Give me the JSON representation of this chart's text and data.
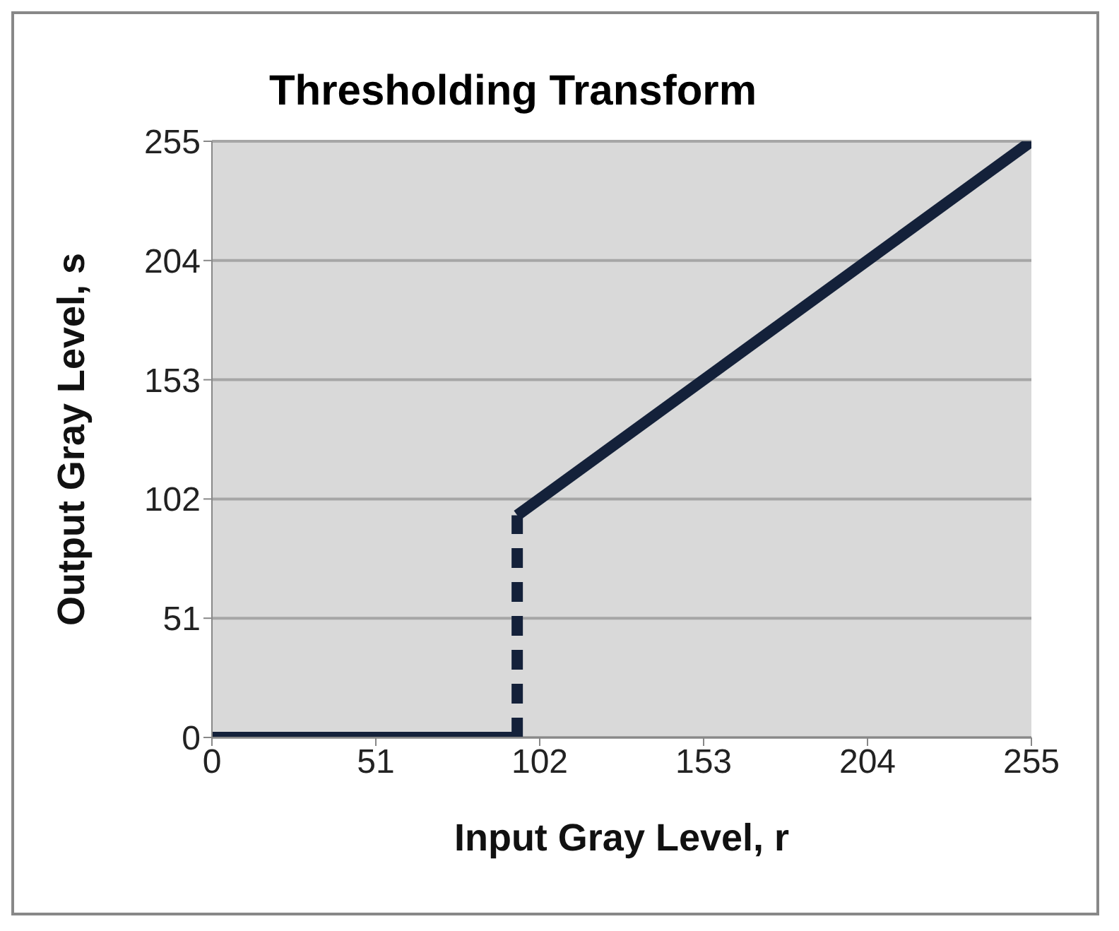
{
  "chart_data": {
    "type": "line",
    "title": "Thresholding Transform",
    "xlabel": "Input Gray Level, r",
    "ylabel": "Output Gray Level, s",
    "series": [
      {
        "color": "#14213a",
        "x": [
          0,
          95
        ],
        "values": [
          0,
          0
        ],
        "line_style": "solid"
      },
      {
        "color": "#14213a",
        "x": [
          95,
          95
        ],
        "values": [
          0,
          95
        ],
        "line_style": "dashed"
      },
      {
        "color": "#14213a",
        "x": [
          95,
          255
        ],
        "values": [
          95,
          255
        ],
        "line_style": "solid"
      }
    ],
    "xlim": [
      0,
      255
    ],
    "xticks": [
      0,
      51,
      102,
      153,
      204,
      255
    ],
    "ylim": [
      0,
      255
    ],
    "yticks": [
      0,
      51,
      102,
      153,
      204,
      255
    ],
    "grid": "y",
    "marker": "none"
  }
}
